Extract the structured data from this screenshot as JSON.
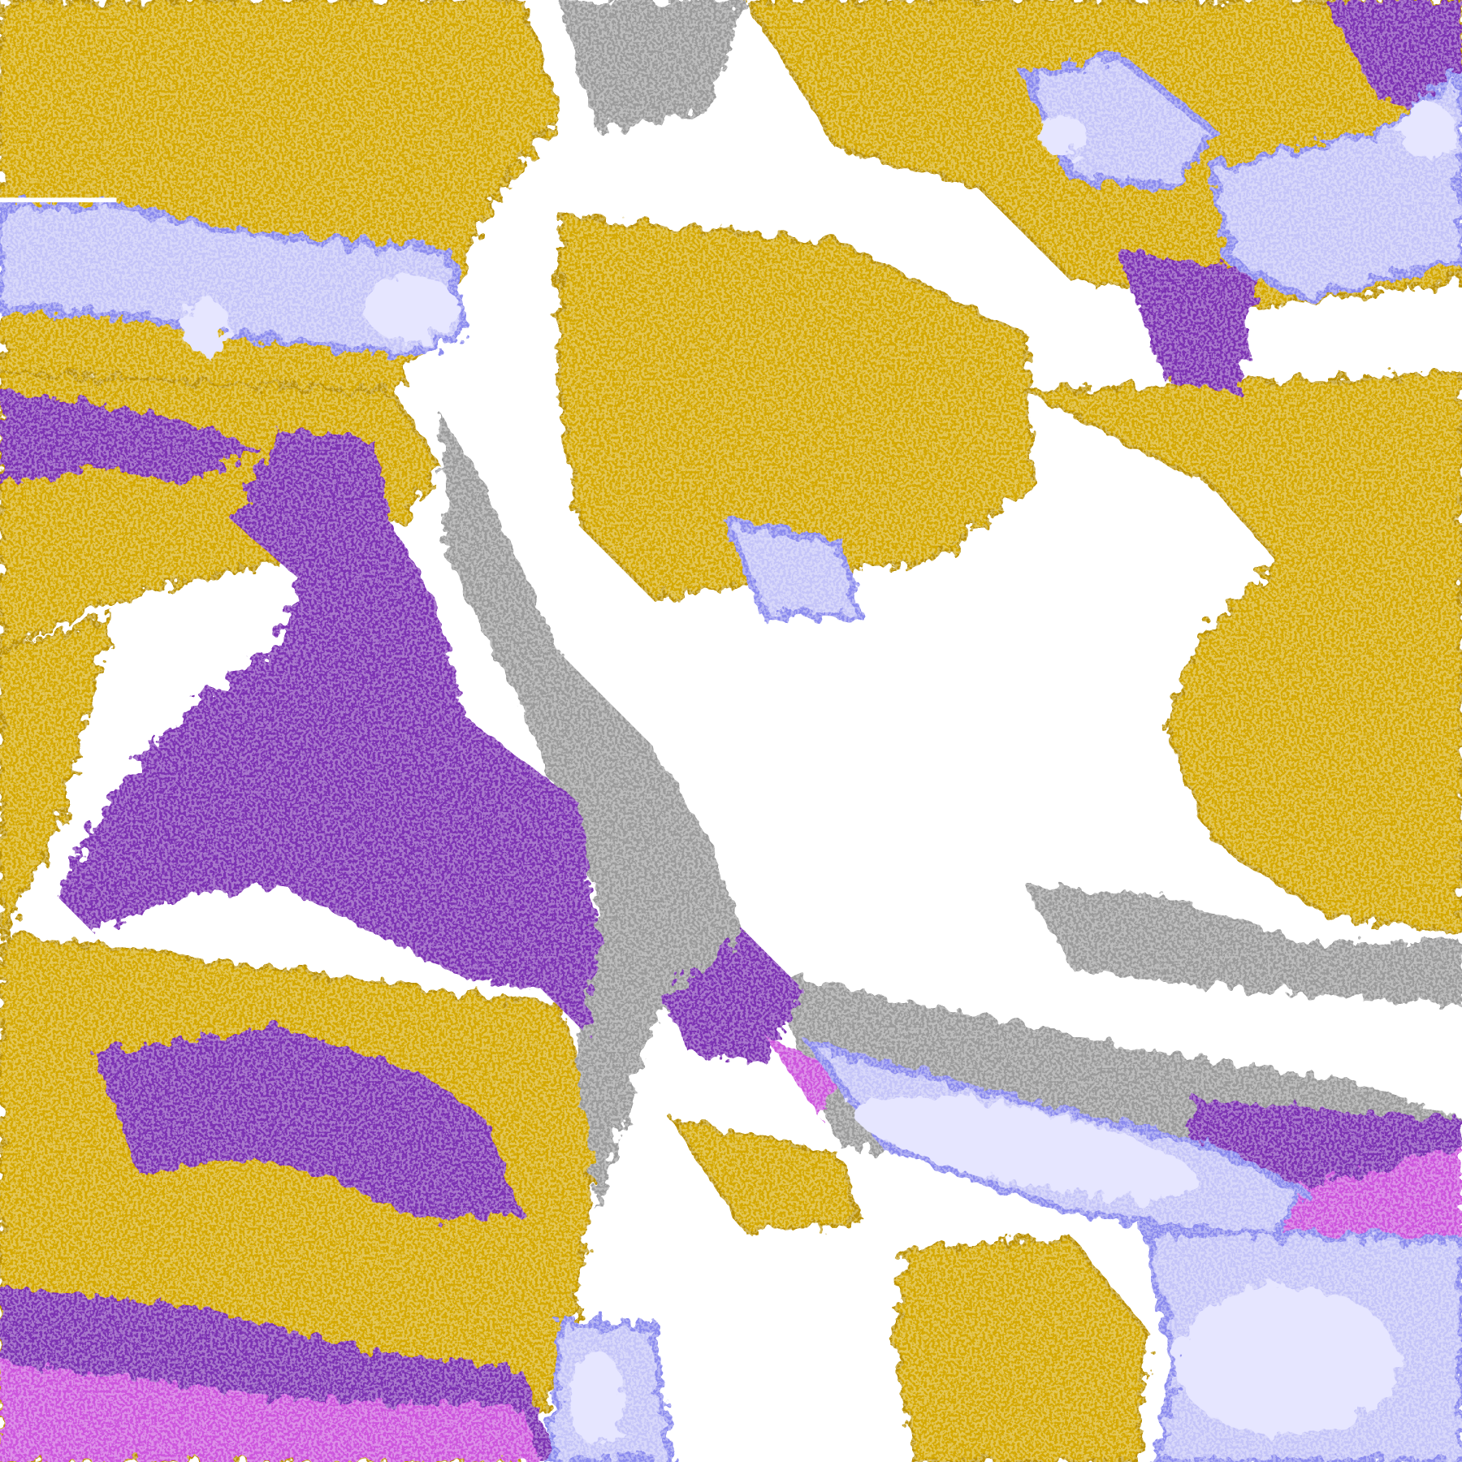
{
  "map": {
    "palette": {
      "clear": "#ffffff",
      "gold": "#d4a800",
      "gold_dark": "#b98f00",
      "purple": "#7b33b3",
      "magenta": "#cc55dd",
      "gray": "#9a9a9a",
      "blue": "#8a8aee",
      "lavender": "#e6e6ff",
      "lavender_mid": "#c4c4f8"
    }
  }
}
